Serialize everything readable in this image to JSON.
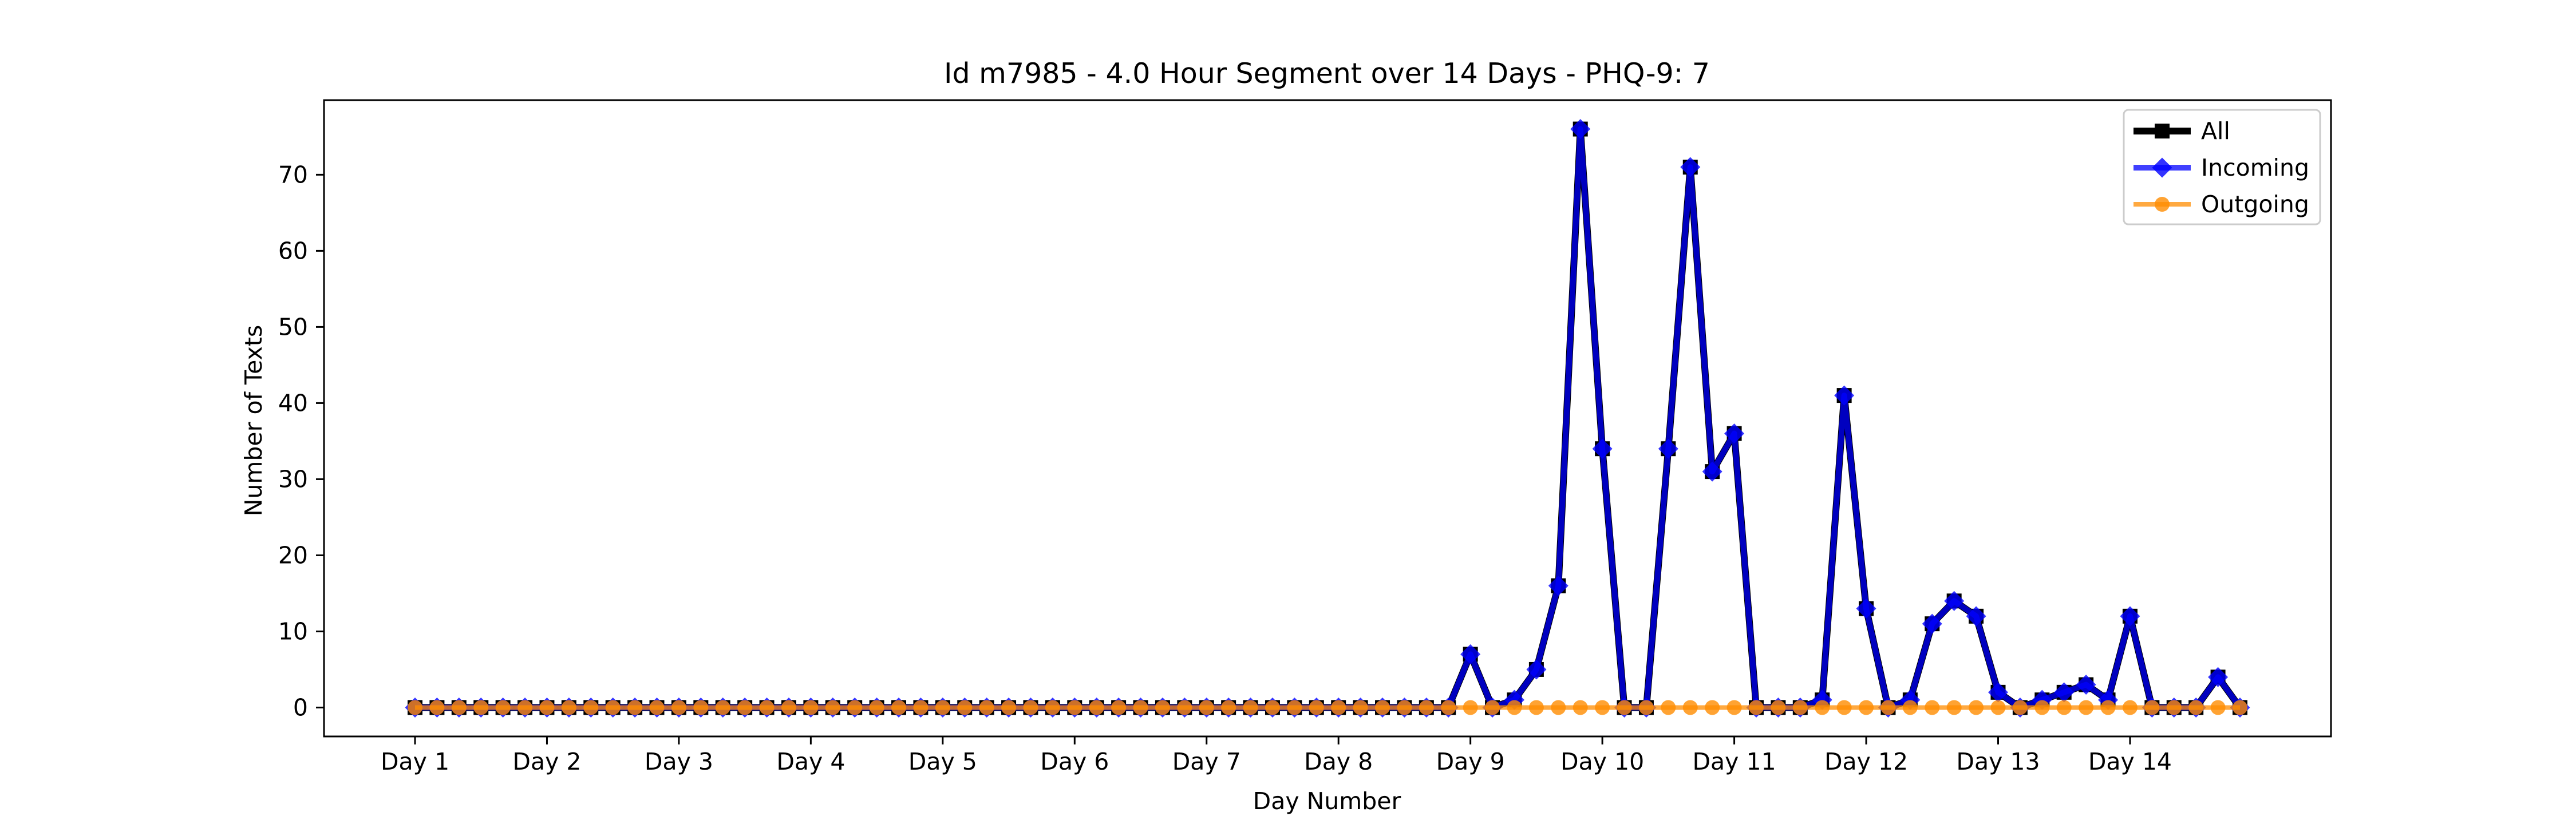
{
  "chart_data": {
    "type": "line",
    "title": "Id m7985 - 4.0 Hour Segment over 14 Days - PHQ-9: 7",
    "xlabel": "Day Number",
    "ylabel": "Number of Texts",
    "x_tick_labels": [
      "Day 1",
      "Day 2",
      "Day 3",
      "Day 4",
      "Day 5",
      "Day 6",
      "Day 7",
      "Day 8",
      "Day 9",
      "Day 10",
      "Day 11",
      "Day 12",
      "Day 13",
      "Day 14"
    ],
    "y_ticks": [
      0,
      10,
      20,
      30,
      40,
      50,
      60,
      70
    ],
    "ylim": [
      -3.8,
      79.8
    ],
    "grid": false,
    "legend_position": "top-right",
    "series": [
      {
        "name": "All",
        "color": "#000000",
        "marker": "square",
        "values": [
          0,
          0,
          0,
          0,
          0,
          0,
          0,
          0,
          0,
          0,
          0,
          0,
          0,
          0,
          0,
          0,
          0,
          0,
          0,
          0,
          0,
          0,
          0,
          0,
          0,
          0,
          0,
          0,
          0,
          0,
          0,
          0,
          0,
          0,
          0,
          0,
          0,
          0,
          0,
          0,
          0,
          0,
          0,
          0,
          0,
          0,
          0,
          0,
          7,
          0,
          1,
          5,
          16,
          76,
          34,
          0,
          0,
          34,
          71,
          31,
          36,
          0,
          0,
          0,
          1,
          41,
          13,
          0,
          1,
          11,
          14,
          12,
          2,
          0,
          1,
          2,
          3,
          1,
          12,
          0,
          0,
          0,
          4,
          0
        ]
      },
      {
        "name": "Incoming",
        "color": "#0000ff",
        "marker": "diamond",
        "values": [
          0,
          0,
          0,
          0,
          0,
          0,
          0,
          0,
          0,
          0,
          0,
          0,
          0,
          0,
          0,
          0,
          0,
          0,
          0,
          0,
          0,
          0,
          0,
          0,
          0,
          0,
          0,
          0,
          0,
          0,
          0,
          0,
          0,
          0,
          0,
          0,
          0,
          0,
          0,
          0,
          0,
          0,
          0,
          0,
          0,
          0,
          0,
          0,
          7,
          0,
          1,
          5,
          16,
          76,
          34,
          0,
          0,
          34,
          71,
          31,
          36,
          0,
          0,
          0,
          1,
          41,
          13,
          0,
          1,
          11,
          14,
          12,
          2,
          0,
          1,
          2,
          3,
          1,
          12,
          0,
          0,
          0,
          4,
          0
        ]
      },
      {
        "name": "Outgoing",
        "color": "#ff8c00",
        "marker": "circle",
        "values": [
          0,
          0,
          0,
          0,
          0,
          0,
          0,
          0,
          0,
          0,
          0,
          0,
          0,
          0,
          0,
          0,
          0,
          0,
          0,
          0,
          0,
          0,
          0,
          0,
          0,
          0,
          0,
          0,
          0,
          0,
          0,
          0,
          0,
          0,
          0,
          0,
          0,
          0,
          0,
          0,
          0,
          0,
          0,
          0,
          0,
          0,
          0,
          0,
          0,
          0,
          0,
          0,
          0,
          0,
          0,
          0,
          0,
          0,
          0,
          0,
          0,
          0,
          0,
          0,
          0,
          0,
          0,
          0,
          0,
          0,
          0,
          0,
          0,
          0,
          0,
          0,
          0,
          0,
          0,
          0,
          0,
          0,
          0,
          0
        ]
      }
    ]
  }
}
